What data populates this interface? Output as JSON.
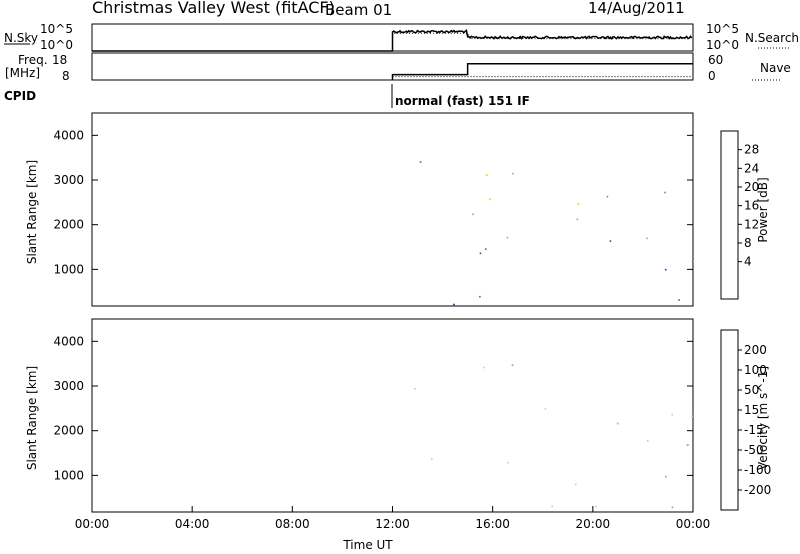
{
  "header": {
    "station": "Christmas Valley West (fitACF)",
    "beam": "Beam 01",
    "date": "14/Aug/2011"
  },
  "left_labels": {
    "nsky": "N.Sky",
    "freq": "Freq.",
    "mhz": "[MHz]",
    "cpid": "CPID"
  },
  "right_labels": {
    "nsearch": "N.Search",
    "nave": "Nave"
  },
  "panel_ticks": {
    "noise_left_top": "10^5",
    "noise_left_bottom": "10^0",
    "noise_right_top": "10^5",
    "noise_right_bottom": "10^0",
    "freq_left_top": "18",
    "freq_left_bottom": "8",
    "freq_right_top": "60",
    "freq_right_bottom": "0"
  },
  "cpid_text": "normal (fast) 151 IF",
  "chart_data": [
    {
      "type": "heatmap",
      "title": "",
      "xlabel": "",
      "ylabel": "Slant Range [km]",
      "ylim": [
        180,
        4500
      ],
      "yticks": [
        "1000",
        "2000",
        "3000",
        "4000"
      ],
      "colorbar": {
        "label": "Power [dB]",
        "ticks": [
          "4",
          "8",
          "12",
          "16",
          "20",
          "24",
          "28"
        ],
        "colors": [
          "#1f2bd6",
          "#2a4fa8",
          "#2f7f5a",
          "#3fae45",
          "#8ec63f",
          "#f2c21a",
          "#f28a1a",
          "#e8461f",
          "#d61a1a"
        ]
      },
      "scatter_bands": [
        {
          "t0": 12.0,
          "t1": 24.0,
          "r0": 200,
          "r1": 450,
          "class": "low"
        },
        {
          "t0": 12.0,
          "t1": 13.2,
          "r0": 2700,
          "r1": 3600,
          "class": "mid"
        },
        {
          "t0": 13.0,
          "t1": 24.0,
          "r0": 1300,
          "r1": 1800,
          "class": "mid"
        },
        {
          "t0": 14.8,
          "t1": 24.0,
          "r0": 2100,
          "r1": 2700,
          "class": "high"
        },
        {
          "t0": 15.5,
          "t1": 17.5,
          "r0": 2600,
          "r1": 3500,
          "class": "high"
        },
        {
          "t0": 19.0,
          "t1": 24.0,
          "r0": 800,
          "r1": 1300,
          "class": "low"
        },
        {
          "t0": 22.5,
          "t1": 24.0,
          "r0": 2600,
          "r1": 3300,
          "class": "mid"
        }
      ]
    },
    {
      "type": "heatmap",
      "title": "",
      "xlabel": "Time UT",
      "ylabel": "Slant Range [km]",
      "ylim": [
        180,
        4500
      ],
      "yticks": [
        "1000",
        "2000",
        "3000",
        "4000"
      ],
      "xticks": [
        "00:00",
        "04:00",
        "08:00",
        "12:00",
        "16:00",
        "20:00",
        "00:00"
      ],
      "colorbar": {
        "label": "Velocity [m s^-1]",
        "ticks": [
          "200",
          "100",
          "50",
          "15",
          "-15",
          "-50",
          "-100",
          "-200"
        ],
        "colors": [
          "#2a3bc8",
          "#3a6fb0",
          "#2f8a4f",
          "#7fc23a",
          "#c8c8c8",
          "#f2c21a",
          "#f28a1a",
          "#e8461f",
          "#d61a1a"
        ]
      },
      "scatter_bands": [
        {
          "t0": 12.0,
          "t1": 24.0,
          "r0": 200,
          "r1": 450,
          "class": "low"
        },
        {
          "t0": 12.0,
          "t1": 13.2,
          "r0": 2700,
          "r1": 3600,
          "class": "mid"
        },
        {
          "t0": 13.0,
          "t1": 24.0,
          "r0": 1300,
          "r1": 1800,
          "class": "mid"
        },
        {
          "t0": 14.8,
          "t1": 24.0,
          "r0": 2100,
          "r1": 2700,
          "class": "mid"
        },
        {
          "t0": 15.5,
          "t1": 17.5,
          "r0": 2600,
          "r1": 3500,
          "class": "mid"
        },
        {
          "t0": 19.0,
          "t1": 24.0,
          "r0": 800,
          "r1": 1300,
          "class": "low"
        }
      ]
    }
  ],
  "noise_series": {
    "t_on": 12.0,
    "level_early": 0.72,
    "level_late": 0.5
  },
  "freq_series": {
    "t_on": 12.0,
    "step_time": 15.0,
    "level_early": 10.0,
    "level_late": 14.0
  }
}
